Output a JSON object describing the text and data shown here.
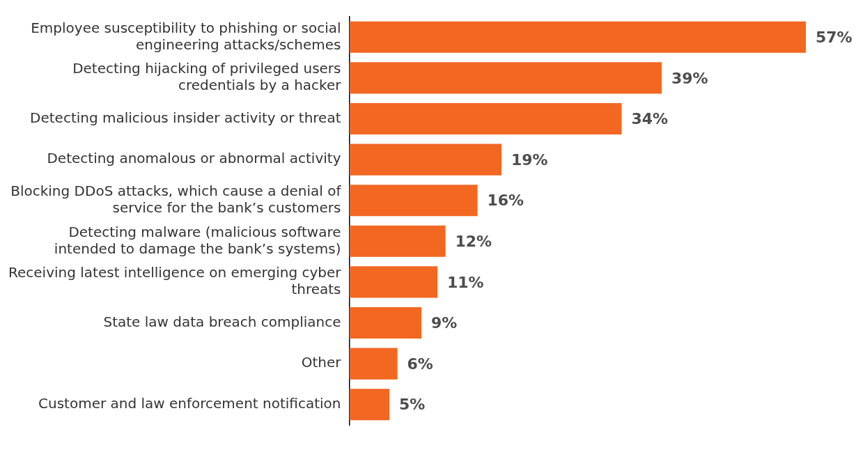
{
  "chart_data": {
    "type": "bar",
    "orientation": "horizontal",
    "categories": [
      "Employee susceptibility to phishing or social engineering attacks/schemes",
      "Detecting hijacking of privileged users credentials by a hacker",
      "Detecting malicious insider activity or threat",
      "Detecting anomalous or abnormal activity",
      "Blocking DDoS attacks, which cause a denial of service for the bank’s customers",
      "Detecting malware (malicious software intended to damage the bank’s systems)",
      "Receiving latest intelligence on emerging cyber threats",
      "State law data breach compliance",
      "Other",
      "Customer and law enforcement notification"
    ],
    "values": [
      57,
      39,
      34,
      19,
      16,
      12,
      11,
      9,
      6,
      5
    ],
    "value_labels": [
      "57%",
      "39%",
      "34%",
      "19%",
      "16%",
      "12%",
      "11%",
      "9%",
      "6%",
      "5%"
    ],
    "color": "#f26722",
    "legend": false
  }
}
